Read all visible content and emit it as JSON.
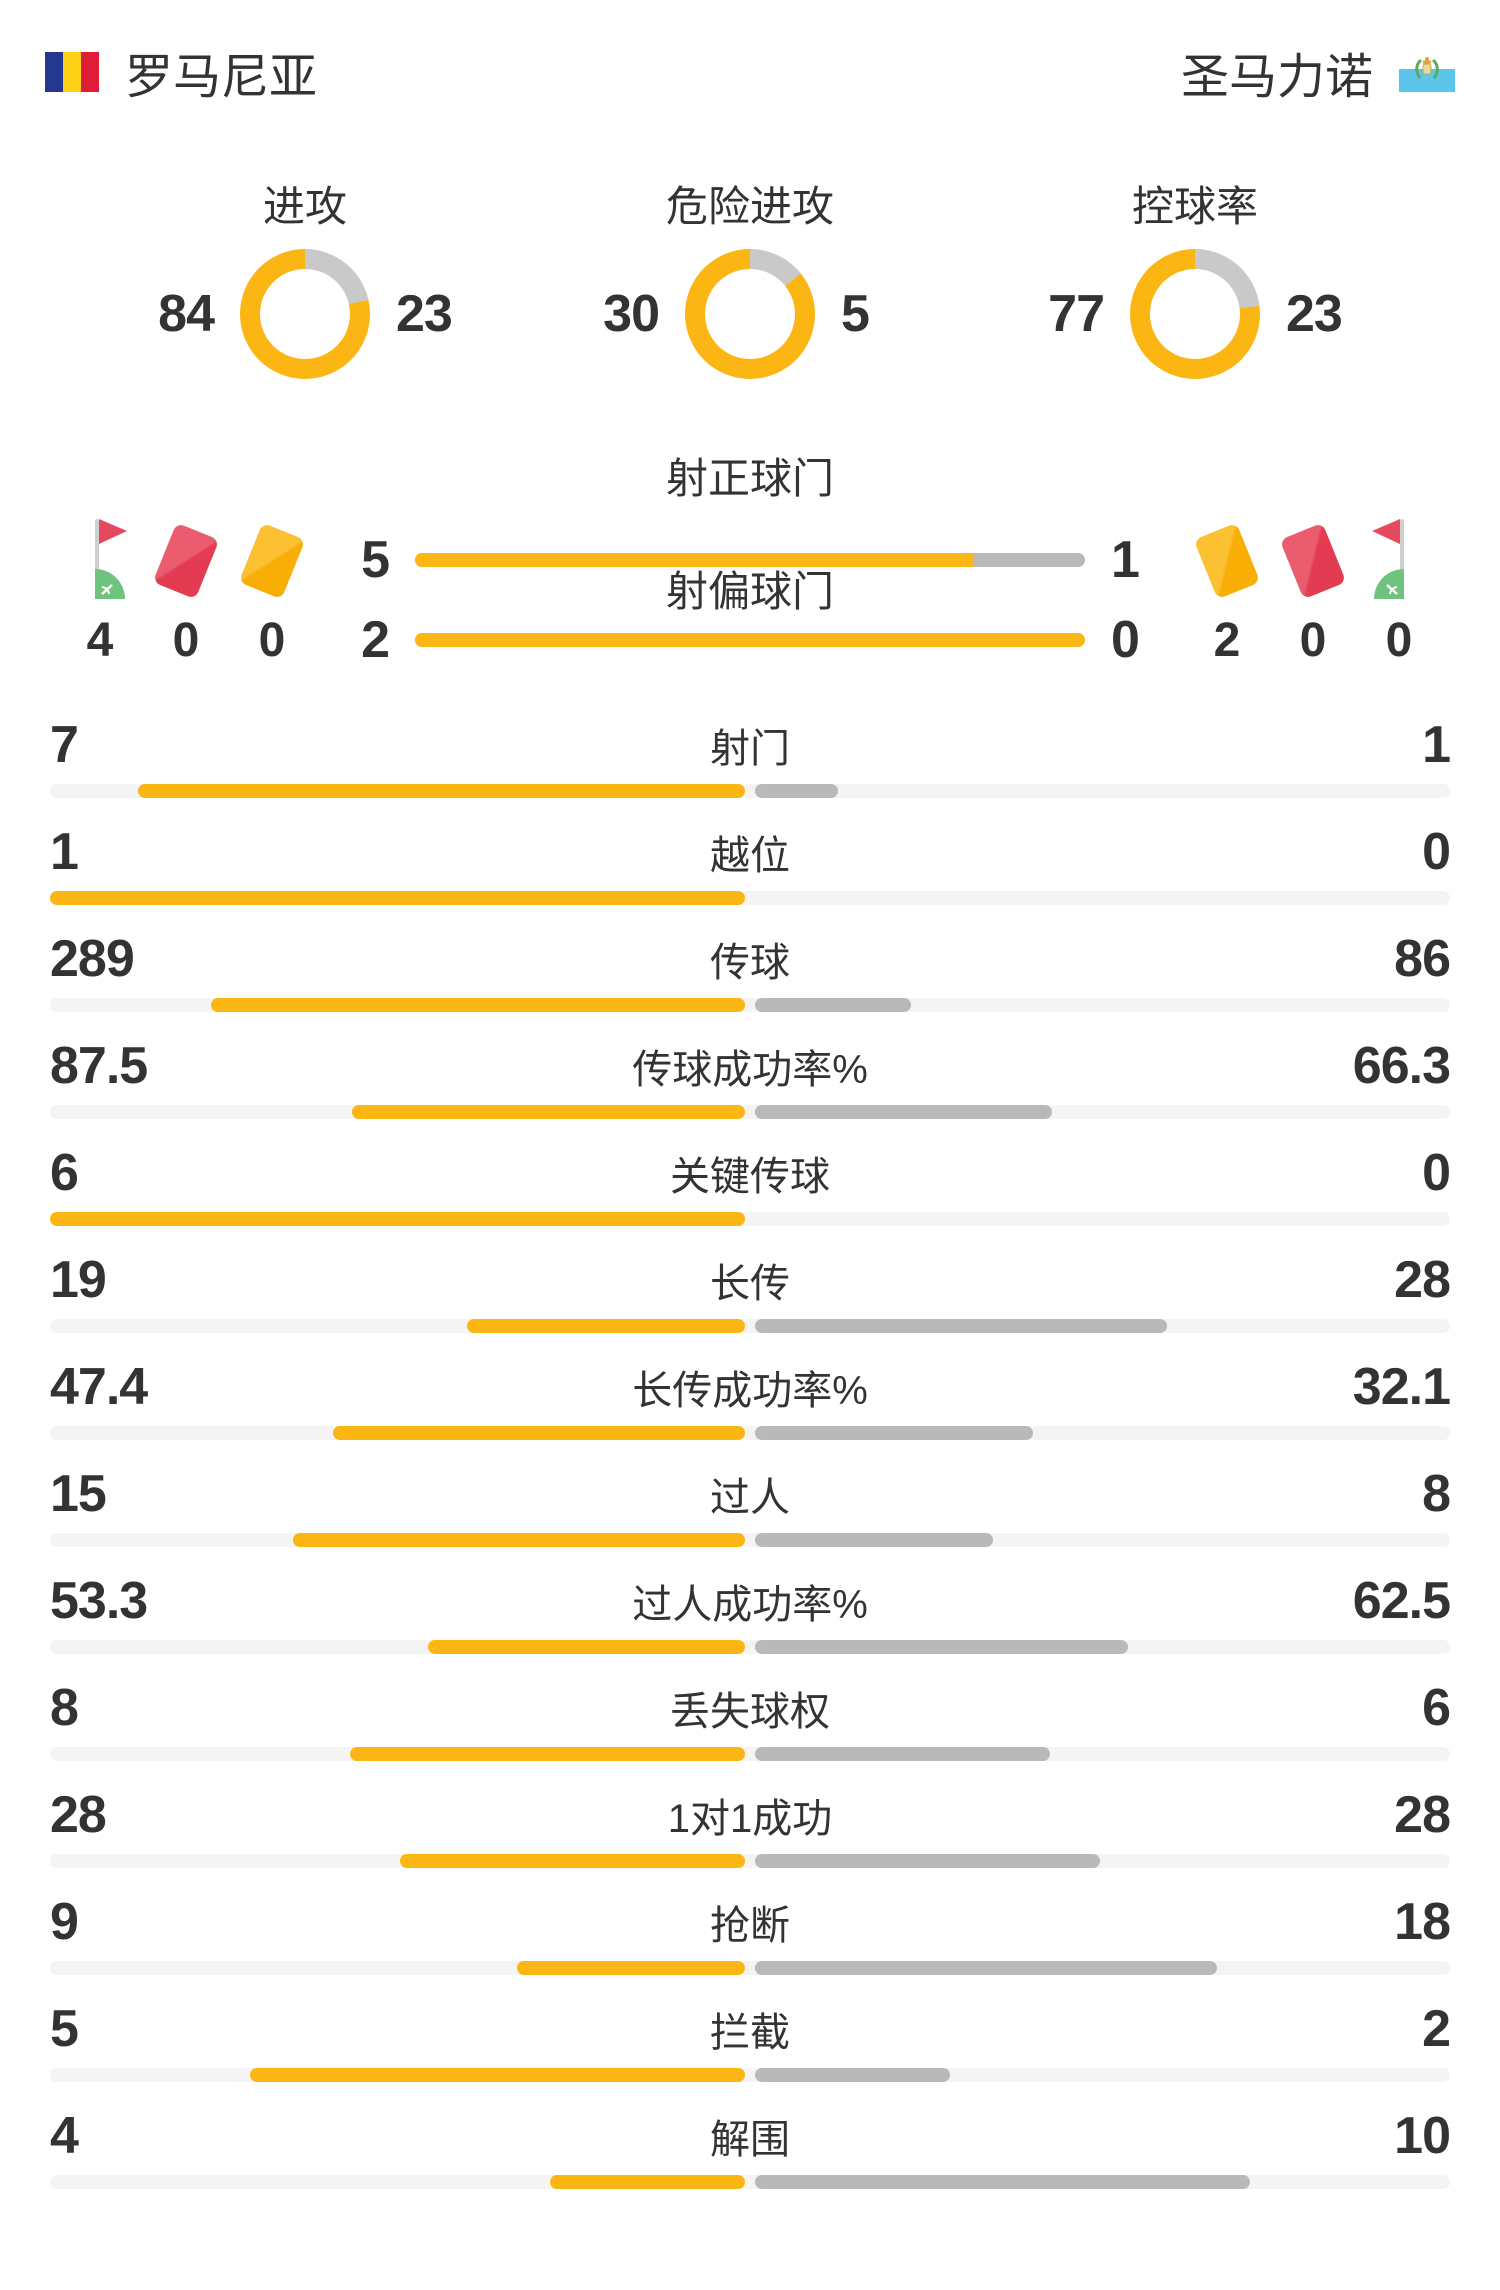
{
  "header": {
    "home_team": "罗马尼亚",
    "away_team": "圣马力诺"
  },
  "donuts": [
    {
      "label": "进攻",
      "home": 84,
      "away": 23
    },
    {
      "label": "危险进攻",
      "home": 30,
      "away": 5
    },
    {
      "label": "控球率",
      "home": 77,
      "away": 23
    }
  ],
  "shots": [
    {
      "label": "射正球门",
      "home": 5,
      "away": 1
    },
    {
      "label": "射偏球门",
      "home": 2,
      "away": 0
    }
  ],
  "discipline": {
    "home": [
      {
        "icon": "corner-flag",
        "count": 4
      },
      {
        "icon": "red-card",
        "count": 0
      },
      {
        "icon": "yellow-card",
        "count": 0
      }
    ],
    "away": [
      {
        "icon": "yellow-card",
        "count": 2
      },
      {
        "icon": "red-card",
        "count": 0
      },
      {
        "icon": "corner-flag",
        "count": 0
      }
    ]
  },
  "stats": [
    {
      "label": "射门",
      "home": 7,
      "away": 1
    },
    {
      "label": "越位",
      "home": 1,
      "away": 0
    },
    {
      "label": "传球",
      "home": 289,
      "away": 86
    },
    {
      "label": "传球成功率%",
      "home": 87.5,
      "away": 66.3
    },
    {
      "label": "关键传球",
      "home": 6,
      "away": 0
    },
    {
      "label": "长传",
      "home": 19,
      "away": 28
    },
    {
      "label": "长传成功率%",
      "home": 47.4,
      "away": 32.1
    },
    {
      "label": "过人",
      "home": 15,
      "away": 8
    },
    {
      "label": "过人成功率%",
      "home": 53.3,
      "away": 62.5
    },
    {
      "label": "丢失球权",
      "home": 8,
      "away": 6
    },
    {
      "label": "1对1成功",
      "home": 28,
      "away": 28
    },
    {
      "label": "抢断",
      "home": 9,
      "away": 18
    },
    {
      "label": "拦截",
      "home": 5,
      "away": 2
    },
    {
      "label": "解围",
      "home": 4,
      "away": 10
    }
  ],
  "colors": {
    "primary_amber": "#FBB614",
    "bar_gray": "#B9B9B9",
    "donut_gray": "#C9C9C9",
    "track_gray": "#F4F4F4",
    "text": "#333333",
    "card_red": "#E5495D",
    "grass_green": "#6FC37E",
    "sm_flag_blue": "#5BC5EA"
  },
  "chart_data": [
    {
      "type": "pie",
      "title": "进攻",
      "series": [
        {
          "name": "罗马尼亚",
          "value": 84
        },
        {
          "name": "圣马力诺",
          "value": 23
        }
      ]
    },
    {
      "type": "pie",
      "title": "危险进攻",
      "series": [
        {
          "name": "罗马尼亚",
          "value": 30
        },
        {
          "name": "圣马力诺",
          "value": 5
        }
      ]
    },
    {
      "type": "pie",
      "title": "控球率",
      "series": [
        {
          "name": "罗马尼亚",
          "value": 77
        },
        {
          "name": "圣马力诺",
          "value": 23
        }
      ]
    },
    {
      "type": "bar",
      "title": "比赛数据对比",
      "categories": [
        "射正球门",
        "射偏球门",
        "角球",
        "红牌",
        "黄牌",
        "射门",
        "越位",
        "传球",
        "传球成功率%",
        "关键传球",
        "长传",
        "长传成功率%",
        "过人",
        "过人成功率%",
        "丢失球权",
        "1对1成功",
        "抢断",
        "拦截",
        "解围"
      ],
      "series": [
        {
          "name": "罗马尼亚",
          "values": [
            5,
            2,
            4,
            0,
            0,
            7,
            1,
            289,
            87.5,
            6,
            19,
            47.4,
            15,
            53.3,
            8,
            28,
            9,
            5,
            4
          ]
        },
        {
          "name": "圣马力诺",
          "values": [
            1,
            0,
            0,
            0,
            2,
            1,
            0,
            86,
            66.3,
            0,
            28,
            32.1,
            8,
            62.5,
            6,
            28,
            18,
            2,
            10
          ]
        }
      ],
      "legend_position": "top",
      "grid": false
    }
  ]
}
